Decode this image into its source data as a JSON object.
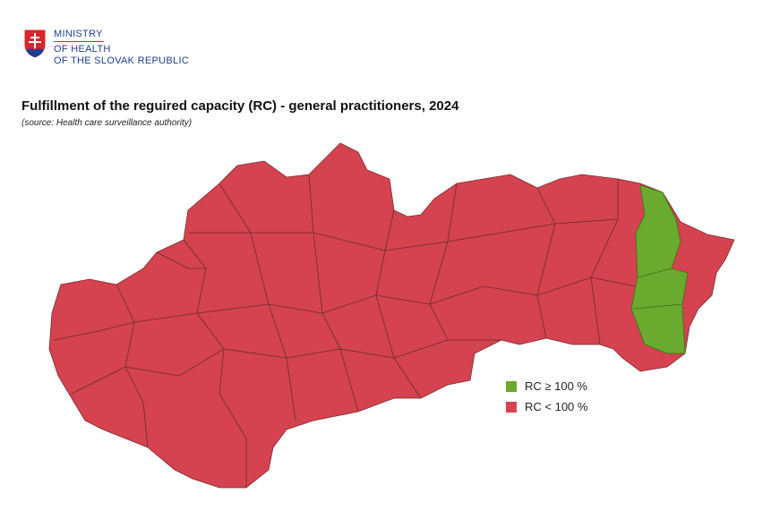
{
  "header": {
    "logo_lines": [
      "MINISTRY",
      "OF HEALTH",
      "OF THE SLOVAK REPUBLIC"
    ]
  },
  "title": "Fulfillment of the reguired capacity (RC) - general practitioners, 2024",
  "subtitle": "(source: Health care surveillance authority)",
  "legend": [
    {
      "label": "RC ≥ 100 %",
      "color": "#6aaa2e"
    },
    {
      "label": "RC < 100 %",
      "color": "#d4434f"
    }
  ]
}
